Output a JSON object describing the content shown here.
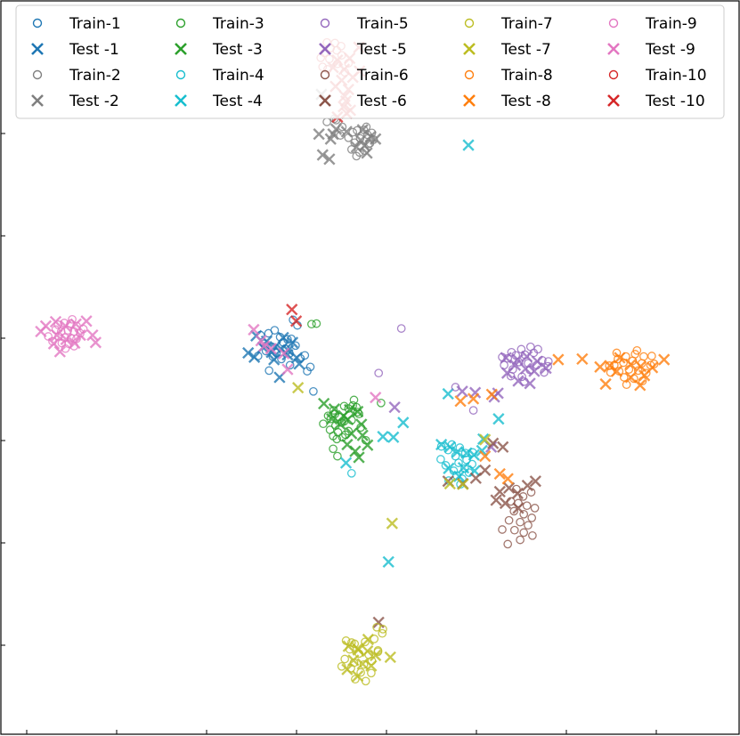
{
  "chart_data": {
    "type": "scatter",
    "title": "",
    "xlabel": "",
    "ylabel": "",
    "xlim": [
      -60,
      60
    ],
    "ylim": [
      -60,
      60
    ],
    "grid": false,
    "axis_tick_labels": false,
    "legend": {
      "location": "top",
      "columns": 5,
      "entries": [
        {
          "label": "Train-1",
          "marker": "o",
          "color": "#1f77b4"
        },
        {
          "label": "Test -1",
          "marker": "x",
          "color": "#1f77b4"
        },
        {
          "label": "Train-2",
          "marker": "o",
          "color": "#7f7f7f"
        },
        {
          "label": "Test -2",
          "marker": "x",
          "color": "#7f7f7f"
        },
        {
          "label": "Train-3",
          "marker": "o",
          "color": "#2ca02c"
        },
        {
          "label": "Test -3",
          "marker": "x",
          "color": "#2ca02c"
        },
        {
          "label": "Train-4",
          "marker": "o",
          "color": "#17becf"
        },
        {
          "label": "Test -4",
          "marker": "x",
          "color": "#17becf"
        },
        {
          "label": "Train-5",
          "marker": "o",
          "color": "#9467bd"
        },
        {
          "label": "Test -5",
          "marker": "x",
          "color": "#9467bd"
        },
        {
          "label": "Train-6",
          "marker": "o",
          "color": "#8c564b"
        },
        {
          "label": "Test -6",
          "marker": "x",
          "color": "#8c564b"
        },
        {
          "label": "Train-7",
          "marker": "o",
          "color": "#bcbd22"
        },
        {
          "label": "Test -7",
          "marker": "x",
          "color": "#bcbd22"
        },
        {
          "label": "Train-8",
          "marker": "o",
          "color": "#ff7f0e"
        },
        {
          "label": "Test -8",
          "marker": "x",
          "color": "#ff7f0e"
        },
        {
          "label": "Train-9",
          "marker": "o",
          "color": "#e377c2"
        },
        {
          "label": "Test -9",
          "marker": "x",
          "color": "#e377c2"
        },
        {
          "label": "Train-10",
          "marker": "o",
          "color": "#d62728"
        },
        {
          "label": "Test -10",
          "marker": "x",
          "color": "#d62728"
        }
      ]
    },
    "series": [
      {
        "class": 1,
        "split": "train",
        "marker": "o",
        "color": "#1f77b4",
        "x": [
          -17.8,
          -16.5,
          -15.5,
          -14.6,
          -13.4,
          -14.1,
          -17.2,
          -15.9,
          -13.8,
          -12.8,
          -16.9,
          -15.2,
          -13.1,
          -12.1,
          -15.8,
          -14.4,
          -11.3,
          -18.2,
          -13.0,
          -10.6,
          -16.4,
          -9.7,
          -9.2,
          -12.5,
          -11.8,
          -10.2
        ],
        "y": [
          5.3,
          5.6,
          6.1,
          5.0,
          4.6,
          4.1,
          3.9,
          3.4,
          3.1,
          4.7,
          2.7,
          2.4,
          2.3,
          3.6,
          1.8,
          1.4,
          1.5,
          1.9,
          0.4,
          2.0,
          -0.5,
          0.1,
          -3.9,
          7.8,
          6.9,
          -0.6
        ]
      },
      {
        "class": 1,
        "split": "test",
        "marker": "x",
        "color": "#1f77b4",
        "x": [
          -18.5,
          -16.8,
          -15.4,
          -14.1,
          -12.6,
          -17.4,
          -16.0,
          -14.4,
          -13.3,
          -19.8,
          -15.6,
          -13.4,
          -11.9,
          -18.8,
          -11.5,
          -14.7
        ],
        "y": [
          5.2,
          4.3,
          3.4,
          4.9,
          4.1,
          3.3,
          2.5,
          3.0,
          2.8,
          2.4,
          1.3,
          2.1,
          1.6,
          1.7,
          0.6,
          -1.6
        ]
      },
      {
        "class": 2,
        "split": "train",
        "marker": "o",
        "color": "#7f7f7f",
        "x": [
          -5.8,
          -7.0,
          -4.5,
          -2.8,
          -2.1,
          -3.5,
          -1.0,
          -0.4,
          0.6,
          -1.6,
          -2.5,
          0.0,
          -0.9,
          -3.0,
          -1.7,
          0.3,
          -0.2,
          -2.2,
          -4.8,
          -5.5,
          -0.6
        ],
        "y": [
          40.7,
          40.2,
          39.4,
          38.5,
          38.8,
          37.6,
          38.9,
          38.1,
          37.3,
          37.5,
          36.8,
          36.7,
          35.5,
          35.7,
          35.2,
          38.4,
          36.6,
          34.6,
          38.0,
          40.5,
          39.4
        ]
      },
      {
        "class": 2,
        "split": "test",
        "marker": "x",
        "color": "#7f7f7f",
        "x": [
          -5.5,
          -3.8,
          -1.5,
          0.1,
          0.9,
          -0.9,
          -2.2,
          -0.5,
          -6.0,
          -1.2,
          -7.9,
          -8.3,
          -6.4,
          -7.7,
          -6.6
        ],
        "y": [
          39.0,
          38.6,
          37.2,
          37.8,
          37.4,
          36.3,
          36.1,
          35.1,
          38.2,
          38.9,
          44.7,
          38.2,
          37.4,
          34.8,
          34.1
        ]
      },
      {
        "class": 3,
        "split": "train",
        "marker": "o",
        "color": "#2ca02c",
        "x": [
          -2.8,
          -4.2,
          -3.5,
          -5.7,
          -5.0,
          -6.4,
          -2.0,
          -3.0,
          -4.6,
          -5.6,
          -1.5,
          -6.5,
          -3.5,
          -5.2,
          -4.0,
          -4.5,
          -6.0,
          -0.7,
          -6.8,
          -7.6,
          -4.2,
          -2.2,
          -5.9,
          1.8,
          -6.0,
          -5.3,
          -5.4,
          -1.8
        ],
        "y": [
          -6.2,
          -6.3,
          -6.7,
          -7.6,
          -8.1,
          -8.4,
          -7.3,
          -8.6,
          -9.0,
          -9.5,
          -9.8,
          -10.2,
          -10.4,
          -10.6,
          -11.0,
          -11.4,
          -11.2,
          -11.9,
          -7.9,
          -9.2,
          -8.8,
          -6.5,
          -7.0,
          -5.8,
          -13.3,
          -14.5,
          -11.7,
          -7.6
        ],
        "extra": [
          [
            -9.5,
            7.1
          ],
          [
            -8.7,
            7.2
          ],
          [
            -2.6,
            -5.3
          ]
        ]
      },
      {
        "class": 3,
        "split": "test",
        "marker": "x",
        "color": "#2ca02c",
        "x": [
          -7.5,
          -5.8,
          -4.3,
          -3.3,
          -2.0,
          -6.2,
          -4.9,
          -3.6,
          -1.4,
          -3.0,
          -1.2,
          -3.7,
          -2.4,
          -1.8,
          -0.4
        ],
        "y": [
          -5.9,
          -6.8,
          -7.9,
          -6.9,
          -7.2,
          -8.4,
          -9.2,
          -8.5,
          -9.3,
          -10.8,
          -11.1,
          -12.6,
          -13.7,
          -14.7,
          -12.7
        ]
      },
      {
        "class": 4,
        "split": "train",
        "marker": "o",
        "color": "#17becf",
        "x": [
          -3.0,
          11.6,
          13.3,
          14.6,
          12.7,
          15.5,
          13.9,
          15.7,
          11.5,
          14.4,
          16.6,
          12.3,
          15.4,
          13.6,
          16.1,
          14.1,
          15.0,
          12.8,
          14.7,
          16.7
        ],
        "y": [
          -17.3,
          -12.9,
          -12.6,
          -13.1,
          -13.5,
          -14.0,
          -14.5,
          -15.1,
          -15.0,
          -15.6,
          -15.8,
          -16.0,
          -16.5,
          -16.9,
          -17.2,
          -17.7,
          -18.2,
          -18.5,
          -19.1,
          -13.9
        ]
      },
      {
        "class": 4,
        "split": "test",
        "marker": "x",
        "color": "#17becf",
        "x": [
          11.6,
          13.0,
          14.2,
          15.7,
          16.9,
          18.2,
          18.4,
          15.2,
          12.8,
          17.0,
          14.5,
          20.9,
          2.1,
          3.8,
          -3.9,
          12.7,
          16.0,
          3.0,
          5.4
        ],
        "y": [
          -12.6,
          -13.0,
          -13.8,
          -14.0,
          -14.3,
          -13.6,
          -11.7,
          -16.4,
          -16.5,
          -16.9,
          -17.8,
          -8.4,
          -11.3,
          -11.4,
          -15.6,
          -4.3,
          36.4,
          -31.8,
          -9.0
        ],
        "extra_note": "scattered outliers included"
      },
      {
        "class": 5,
        "split": "train",
        "marker": "o",
        "color": "#9467bd",
        "x": [
          21.5,
          23.0,
          24.6,
          26.1,
          27.3,
          22.4,
          23.7,
          25.2,
          26.6,
          28.0,
          21.8,
          24.2,
          25.7,
          27.1,
          28.9,
          23.2,
          26.0,
          22.9,
          24.7,
          28.3,
          25.1,
          29.0
        ],
        "y": [
          1.7,
          2.5,
          3.0,
          3.4,
          3.0,
          1.5,
          2.0,
          2.1,
          2.4,
          1.2,
          0.4,
          0.9,
          0.7,
          0.4,
          0.2,
          -0.3,
          -0.4,
          -1.4,
          -1.5,
          -0.8,
          -2.3,
          1.0
        ],
        "extra": [
          [
            5.1,
            6.4
          ],
          [
            1.4,
            -0.9
          ],
          [
            13.9,
            -3.2
          ],
          [
            16.8,
            -7.0
          ]
        ]
      },
      {
        "class": 5,
        "split": "test",
        "marker": "x",
        "color": "#9467bd",
        "x": [
          22.1,
          24.0,
          25.5,
          27.2,
          23.6,
          25.3,
          26.7,
          28.6,
          22.3,
          24.1,
          26.0,
          15.0,
          17.1,
          4.0,
          20.2,
          20.8,
          19.7
        ],
        "y": [
          1.6,
          1.3,
          1.8,
          1.0,
          0.4,
          -0.2,
          -0.6,
          -0.1,
          -0.9,
          -2.2,
          -2.6,
          -3.9,
          -4.1,
          -6.5,
          -4.8,
          -4.2,
          -13.0
        ]
      },
      {
        "class": 6,
        "split": "train",
        "marker": "o",
        "color": "#8c564b",
        "x": [
          22.9,
          24.1,
          25.5,
          26.8,
          23.4,
          25.0,
          26.3,
          22.6,
          24.4,
          25.7,
          23.5,
          25.0,
          26.4,
          24.4,
          22.4,
          24.9,
          26.2,
          23.8,
          21.5
        ],
        "y": [
          -21.9,
          -22.2,
          -22.6,
          -23.0,
          -23.5,
          -24.0,
          -24.6,
          -25.0,
          -25.3,
          -25.8,
          -26.6,
          -27.0,
          -27.5,
          -28.2,
          -28.9,
          -21.1,
          -20.4,
          -19.9,
          -26.5
        ]
      },
      {
        "class": 6,
        "split": "test",
        "marker": "x",
        "color": "#8c564b",
        "x": [
          21.1,
          22.6,
          24.0,
          25.6,
          26.9,
          20.5,
          22.0,
          24.1,
          18.7,
          17.2,
          15.1,
          12.7,
          21.6,
          20.0,
          1.4
        ],
        "y": [
          -20.3,
          -19.7,
          -20.6,
          -19.3,
          -18.6,
          -21.7,
          -22.2,
          -23.0,
          -16.8,
          -18.1,
          -19.0,
          -18.6,
          -13.0,
          -12.4,
          -41.7
        ]
      },
      {
        "class": 7,
        "split": "train",
        "marker": "o",
        "color": "#bcbd22",
        "x": [
          -3.9,
          -2.5,
          -0.8,
          0.7,
          -3.3,
          -1.8,
          -0.2,
          1.3,
          -4.1,
          -2.6,
          -1.0,
          0.3,
          -3.1,
          -1.5,
          0.2,
          -2.4,
          -0.7,
          1.3,
          2.0,
          -4.6
        ],
        "y": [
          -44.7,
          -45.2,
          -44.9,
          -44.4,
          -46.1,
          -46.8,
          -47.0,
          -46.5,
          -47.7,
          -48.3,
          -48.6,
          -48.0,
          -49.2,
          -49.9,
          -50.0,
          -51.0,
          -51.3,
          -46.3,
          -43.5,
          -48.9
        ]
      },
      {
        "class": 7,
        "split": "train_extra",
        "marker": "o",
        "color": "#bcbd22",
        "x": [
          -3.0,
          1.1,
          2.1
        ],
        "y": [
          -45.0,
          -42.5,
          -42.8
        ]
      },
      {
        "class": 7,
        "split": "test",
        "marker": "x",
        "color": "#bcbd22",
        "x": [
          -3.5,
          -1.9,
          -0.4,
          0.9,
          -2.7,
          -1.2,
          0.2,
          -3.7,
          -2.0,
          3.3,
          -2.0,
          -0.3,
          -11.7,
          15.1,
          13.0,
          18.7,
          3.6
        ],
        "y": [
          -45.6,
          -46.2,
          -46.4,
          -47.1,
          -47.9,
          -48.5,
          -48.8,
          -49.4,
          -50.5,
          -47.4,
          -46.0,
          -44.5,
          -3.3,
          -19.1,
          -19.0,
          -11.8,
          -25.5
        ],
        "extra_note": "scattered outliers included"
      },
      {
        "class": 8,
        "split": "train",
        "marker": "o",
        "color": "#ff7f0e",
        "x": [
          40.3,
          41.6,
          43.1,
          44.5,
          39.7,
          41.2,
          42.7,
          44.2,
          45.6,
          40.5,
          42.1,
          43.6,
          44.9,
          41.3,
          42.9,
          44.3,
          41.7,
          45.8,
          38.9,
          43.4,
          46.2,
          40.1,
          39.1
        ],
        "y": [
          1.4,
          1.8,
          2.2,
          1.8,
          0.4,
          0.8,
          1.1,
          0.7,
          0.4,
          -0.6,
          -0.3,
          -0.5,
          -0.9,
          -1.6,
          -1.8,
          -2.2,
          -2.8,
          1.9,
          0.3,
          2.8,
          0.6,
          2.4,
          -0.8
        ]
      },
      {
        "class": 8,
        "split": "test",
        "marker": "x",
        "color": "#ff7f0e",
        "x": [
          37.4,
          39.0,
          40.6,
          42.4,
          44.0,
          45.9,
          47.8,
          40.1,
          42.4,
          44.6,
          38.3,
          43.9,
          16.8,
          19.8,
          14.7,
          18.7,
          21.1,
          22.4,
          34.5,
          30.6
        ],
        "y": [
          0.1,
          0.3,
          1.6,
          0.5,
          0.2,
          0.0,
          1.3,
          -0.6,
          -1.6,
          -1.3,
          -2.7,
          -2.9,
          -5.1,
          -4.4,
          -5.5,
          -14.5,
          -17.4,
          -18.2,
          1.4,
          1.3
        ]
      },
      {
        "class": 9,
        "split": "train",
        "marker": "o",
        "color": "#e377c2",
        "x": [
          -50.7,
          -49.7,
          -48.7,
          -47.7,
          -51.1,
          -50.2,
          -49.1,
          -48.1,
          -47.1,
          -50.6,
          -49.6,
          -48.6,
          -47.7,
          -50.1,
          -49.0,
          -48.1,
          -49.5,
          -52.3,
          -46.6,
          -48.4,
          -51.6
        ],
        "y": [
          7.0,
          7.3,
          7.2,
          6.8,
          6.2,
          5.9,
          6.1,
          5.9,
          5.6,
          5.1,
          4.9,
          4.8,
          4.7,
          4.0,
          3.9,
          3.5,
          3.1,
          5.1,
          6.3,
          7.9,
          4.3
        ]
      },
      {
        "class": 9,
        "split": "test",
        "marker": "x",
        "color": "#e377c2",
        "x": [
          -51.1,
          -49.5,
          -47.8,
          -46.1,
          -52.7,
          -50.9,
          -47.1,
          -45.1,
          -53.5,
          -51.4,
          -49.4,
          -48.0,
          -44.6,
          -50.4,
          -18.9,
          -17.7,
          -17.2,
          -16.1,
          -14.0,
          -13.4,
          0.9
        ],
        "y": [
          7.5,
          6.8,
          7.1,
          7.6,
          6.8,
          5.3,
          5.3,
          5.3,
          5.9,
          3.9,
          4.6,
          4.0,
          4.1,
          2.6,
          6.2,
          4.4,
          3.5,
          3.1,
          2.3,
          -0.3,
          -4.9
        ]
      },
      {
        "class": 10,
        "split": "train",
        "marker": "o",
        "color": "#d62728",
        "x": [
          -7.0,
          -5.7,
          -4.7,
          -6.4,
          -5.4,
          -7.4,
          -4.6,
          -8.0,
          -6.6,
          -5.3,
          -7.7,
          -6.9,
          -3.5,
          -4.1
        ],
        "y": [
          53.2,
          53.1,
          52.6,
          52.3,
          51.9,
          51.5,
          51.1,
          50.7,
          50.5,
          49.7,
          49.2,
          48.8,
          49.8,
          48.3
        ]
      },
      {
        "class": 10,
        "split": "test",
        "marker": "x",
        "color": "#d62728",
        "x": [
          -1.8,
          -3.3,
          -5.3,
          -6.0,
          -4.2,
          -1.7,
          -2.8,
          -4.6,
          -3.5,
          -4.1,
          -3.9,
          -4.3,
          -3.2,
          -3.8,
          -5.3,
          -5.6,
          -12.7,
          -12.0
        ],
        "y": [
          52.4,
          50.6,
          50.3,
          49.1,
          48.8,
          48.5,
          47.5,
          47.0,
          45.5,
          44.4,
          43.6,
          42.7,
          42.1,
          41.6,
          41.0,
          46.0,
          9.5,
          7.6
        ]
      }
    ]
  }
}
